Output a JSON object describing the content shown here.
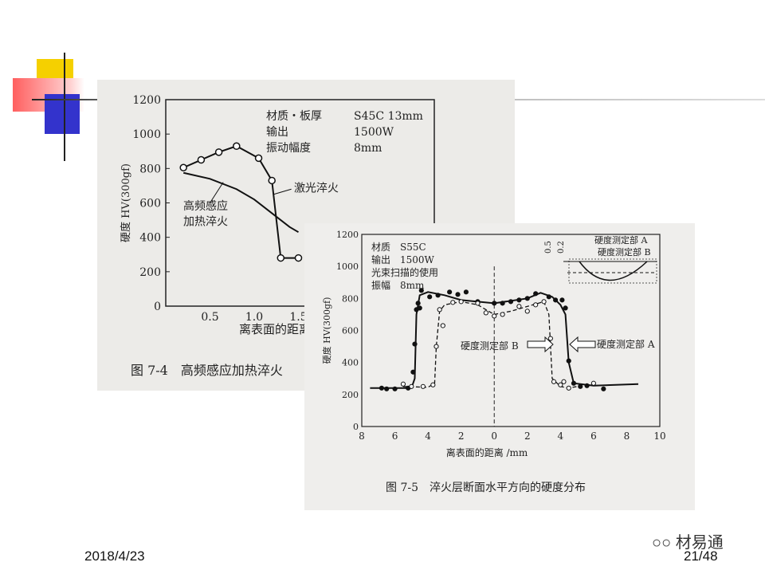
{
  "slide": {
    "date": "2018/4/23",
    "page": "21/48",
    "watermark": "材易通",
    "watermark_icon": "wechat-icon"
  },
  "chart_data": [
    {
      "type": "line",
      "caption": "图 7-4　高频感应加热淬火",
      "ylabel": "硬度 HV(300gf)",
      "xlabel": "离表面的距离",
      "ylim": [
        0,
        1200
      ],
      "yticks": [
        "0",
        "200",
        "400",
        "600",
        "800",
        "1000",
        "1200"
      ],
      "xticks": [
        "0.5",
        "1.0",
        "1.5"
      ],
      "legend_text": [
        {
          "label": "材质・板厚",
          "value": "S45C  13mm"
        },
        {
          "label": "输出",
          "value": "1500W"
        },
        {
          "label": "振动幅度",
          "value": "8mm"
        }
      ],
      "series": [
        {
          "name": "激光淬火",
          "marker": "open-circle",
          "x": [
            0.2,
            0.4,
            0.6,
            0.8,
            1.05,
            1.2,
            1.3,
            1.5
          ],
          "y": [
            805,
            850,
            895,
            930,
            860,
            730,
            280,
            280
          ]
        },
        {
          "name": "高频感应加热淬火",
          "marker": "none",
          "x": [
            0.2,
            0.5,
            0.8,
            1.0,
            1.2,
            1.4,
            1.5
          ],
          "y": [
            775,
            740,
            680,
            620,
            540,
            460,
            430
          ]
        }
      ],
      "annotations": [
        "激光淬火",
        "高频感应",
        "加热淬火"
      ]
    },
    {
      "type": "line",
      "caption": "图 7-5　淬火层断面水平方向的硬度分布",
      "ylabel": "硬度 HV(300gf)",
      "xlabel": "离表面的距离 /mm",
      "ylim": [
        0,
        1200
      ],
      "xlim": [
        -8,
        10
      ],
      "yticks": [
        "0",
        "200",
        "400",
        "600",
        "800",
        "1000",
        "1200"
      ],
      "xticks": [
        "8",
        "6",
        "4",
        "2",
        "0",
        "2",
        "4",
        "6",
        "8",
        "10"
      ],
      "legend_text": [
        "材质　S55C",
        "输出　1500W",
        "光束扫描的使用",
        "振幅　8mm"
      ],
      "inset": {
        "depths": [
          "0.5",
          "0.2"
        ],
        "labels": [
          "硬度测定部 A",
          "硬度测定部 B"
        ]
      },
      "arrows": [
        "硬度测定部 B",
        "硬度测定部 A"
      ],
      "series": [
        {
          "name": "硬度测定部 A",
          "style": "solid",
          "marker": "filled-circle",
          "x": [
            -7.5,
            -5,
            -4.8,
            -4.7,
            -4.5,
            -4,
            -3,
            -2,
            0,
            2,
            2.8,
            3.5,
            4,
            4.3,
            4.5,
            4.8,
            6,
            8.7
          ],
          "y": [
            240,
            240,
            300,
            700,
            820,
            840,
            820,
            790,
            770,
            800,
            835,
            810,
            760,
            700,
            400,
            270,
            255,
            265
          ],
          "points_x": [
            -6.8,
            -6.5,
            -6,
            -5.2,
            -4.9,
            -4.8,
            -4.7,
            -4.6,
            -4.5,
            -4.4,
            -3.9,
            -3.4,
            -2.7,
            -2.2,
            -1.7,
            -1,
            0,
            0.5,
            1,
            1.5,
            2,
            2.5,
            3.3,
            3.7,
            4.1,
            4.3,
            4.5,
            4.8,
            5.2,
            5.6,
            6.6
          ],
          "points_y": [
            240,
            235,
            235,
            240,
            340,
            515,
            730,
            770,
            740,
            850,
            810,
            820,
            840,
            825,
            840,
            780,
            770,
            770,
            780,
            790,
            800,
            830,
            810,
            790,
            790,
            740,
            410,
            270,
            250,
            255,
            235
          ]
        },
        {
          "name": "硬度测定部 B",
          "style": "dashed",
          "marker": "open-circle",
          "x": [
            -5.5,
            -4,
            -3.6,
            -3.5,
            -3.3,
            -3,
            -2,
            -1,
            0,
            1,
            2,
            3,
            3.3,
            3.5,
            4,
            4.5,
            5
          ],
          "y": [
            250,
            245,
            270,
            500,
            720,
            760,
            780,
            760,
            700,
            720,
            750,
            780,
            700,
            300,
            250,
            240,
            250
          ],
          "points_x": [
            -5.5,
            -5,
            -4.3,
            -3.7,
            -3.5,
            -3.3,
            -3.1,
            -2.5,
            -2,
            -1,
            -0.5,
            0,
            0.5,
            1.5,
            2,
            2.5,
            3,
            3.4,
            3.6,
            4,
            4.2,
            4.5,
            6
          ],
          "points_y": [
            265,
            250,
            250,
            260,
            500,
            730,
            630,
            775,
            780,
            770,
            710,
            690,
            700,
            750,
            720,
            760,
            780,
            550,
            280,
            260,
            280,
            240,
            270
          ]
        }
      ]
    }
  ]
}
